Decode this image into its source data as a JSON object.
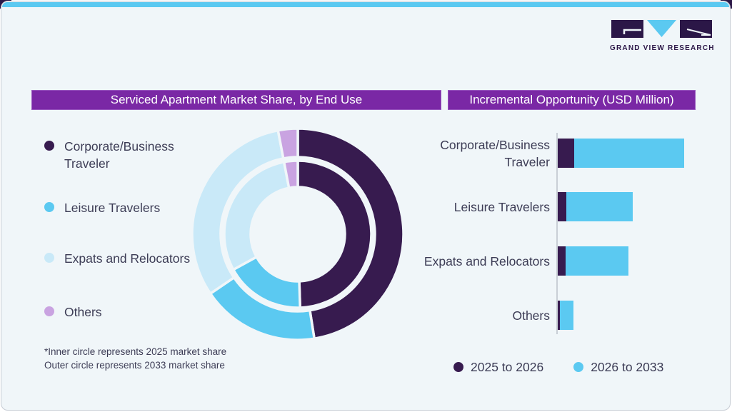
{
  "brand": {
    "logo_text": "GRAND VIEW RESEARCH"
  },
  "colors": {
    "card_background": "#F0F6F9",
    "top_strip_blue": "#5BC9F1",
    "header_purple": "#7A28A5",
    "corporate_dark_purple": "#371B4F",
    "leisure_light_blue": "#5BC9F1",
    "expats_pale_blue": "#C9E9F8",
    "others_lavender": "#C9A3E1",
    "text_dark": "#3C3C55"
  },
  "left_panel": {
    "header": "Serviced Apartment Market Share, by End Use",
    "legend": {
      "items": [
        {
          "label": "Corporate/Business Traveler",
          "color": "#371B4F"
        },
        {
          "label": "Leisure Travelers",
          "color": "#5BC9F1"
        },
        {
          "label": "Expats and Relocators",
          "color": "#C9E9F8"
        },
        {
          "label": "Others",
          "color": "#C9A3E1"
        }
      ]
    },
    "footnote_line1": "*Inner circle represents 2025 market share",
    "footnote_line2": "Outer circle represents 2033 market share"
  },
  "right_panel": {
    "header": "Incremental Opportunity (USD Million)",
    "categories": [
      "Corporate/Business Traveler",
      "Leisure Travelers",
      "Expats and Relocators",
      "Others"
    ],
    "legend": [
      {
        "label": "2025 to 2026",
        "color": "#371B4F"
      },
      {
        "label": "2026 to 2033",
        "color": "#5BC9F1"
      }
    ]
  },
  "chart_data": [
    {
      "type": "pie",
      "subtype": "double-ring-donut",
      "title": "Serviced Apartment Market Share, by End Use",
      "categories": [
        "Corporate/Business Traveler",
        "Leisure Travelers",
        "Expats and Relocators",
        "Others"
      ],
      "colors": [
        "#371B4F",
        "#5BC9F1",
        "#C9E9F8",
        "#C9A3E1"
      ],
      "rings": [
        {
          "name": "2025 market share (inner circle)",
          "values_pct": [
            49.5,
            17.5,
            30.0,
            3.0
          ]
        },
        {
          "name": "2033 market share (outer circle)",
          "values_pct": [
            47.5,
            18.0,
            31.5,
            3.0
          ]
        }
      ],
      "start_angle_deg": 0,
      "direction": "clockwise",
      "notes": [
        "*Inner circle represents 2025 market share",
        "Outer circle represents 2033 market share"
      ]
    },
    {
      "type": "bar",
      "orientation": "horizontal-stacked",
      "title": "Incremental Opportunity (USD Million)",
      "categories": [
        "Corporate/Business Traveler",
        "Leisure Travelers",
        "Expats and Relocators",
        "Others"
      ],
      "axis_note": "no numeric axis labels shown; values are relative units estimated from bar lengths (longest total bar = 100)",
      "series": [
        {
          "name": "2025 to 2026",
          "color": "#371B4F",
          "values_rel": [
            13.0,
            6.8,
            6.4,
            1.7
          ]
        },
        {
          "name": "2026 to 2033",
          "color": "#5BC9F1",
          "values_rel": [
            87.0,
            52.5,
            49.4,
            10.7
          ]
        }
      ],
      "legend_position": "bottom"
    }
  ]
}
